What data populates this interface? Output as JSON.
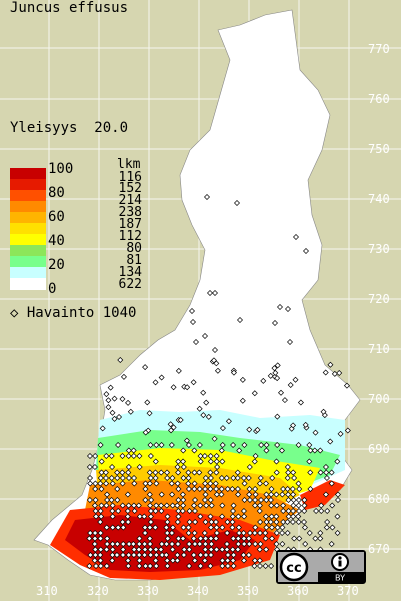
{
  "species": "Juncus effusus",
  "frequency": {
    "label": "Yleisyys",
    "value": "20.0"
  },
  "legend": {
    "count_header": "lkm",
    "bands": [
      {
        "label": "100",
        "color": "#c80000"
      },
      {
        "label": "80",
        "color": "#ff2e00"
      },
      {
        "label": "60",
        "color": "#ff8a00"
      },
      {
        "label": "40",
        "color": "#ffcc00"
      },
      {
        "label": "20",
        "color": "#ffff00"
      },
      {
        "label": "0",
        "color": "#b8ff00"
      }
    ],
    "all_colors": [
      "#c80000",
      "#e61a00",
      "#ff5000",
      "#ff8a00",
      "#ffb400",
      "#ffe000",
      "#ffff00",
      "#8ce65a",
      "#78ff8c",
      "#c8ffff",
      "#ffffff"
    ],
    "counts": [
      "116",
      "152",
      "214",
      "238",
      "187",
      "112",
      "80",
      "81",
      "134",
      "622"
    ]
  },
  "observations": {
    "label": "Havainto",
    "count": "1040"
  },
  "y_axis": [
    "770",
    "760",
    "750",
    "740",
    "730",
    "720",
    "710",
    "700",
    "690",
    "680",
    "670"
  ],
  "x_axis": [
    "310",
    "320",
    "330",
    "340",
    "350",
    "360",
    "370"
  ],
  "license": {
    "badge": "cc",
    "text": "BY",
    "icon": "cc-by-icon"
  }
}
